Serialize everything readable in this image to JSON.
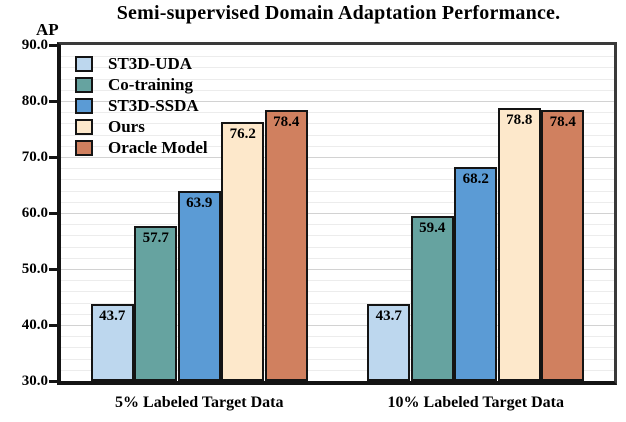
{
  "chart_data": {
    "type": "bar",
    "title": "Semi-supervised Domain Adaptation Performance.",
    "ylabel": "AP",
    "xlabel": "",
    "categories": [
      "5% Labeled Target Data",
      "10% Labeled Target Data"
    ],
    "series": [
      {
        "name": "ST3D-UDA",
        "color": "#bdd7ee",
        "values": [
          43.7,
          43.7
        ]
      },
      {
        "name": "Co-training",
        "color": "#66a3a0",
        "values": [
          57.7,
          59.4
        ]
      },
      {
        "name": "ST3D-SSDA",
        "color": "#5b9bd5",
        "values": [
          63.9,
          68.2
        ]
      },
      {
        "name": "Ours",
        "color": "#fde8cb",
        "values": [
          76.2,
          78.8
        ]
      },
      {
        "name": "Oracle Model",
        "color": "#d0805f",
        "values": [
          78.4,
          78.4
        ]
      }
    ],
    "ylim": [
      30,
      90
    ],
    "ytick_step": 10,
    "minor_grid_step": 2,
    "ytick_decimals": 1,
    "grid": true,
    "legend_position": "top-left",
    "value_labels": "inside-top",
    "bar_border_color": "#141414",
    "axis_color": "#141414"
  }
}
